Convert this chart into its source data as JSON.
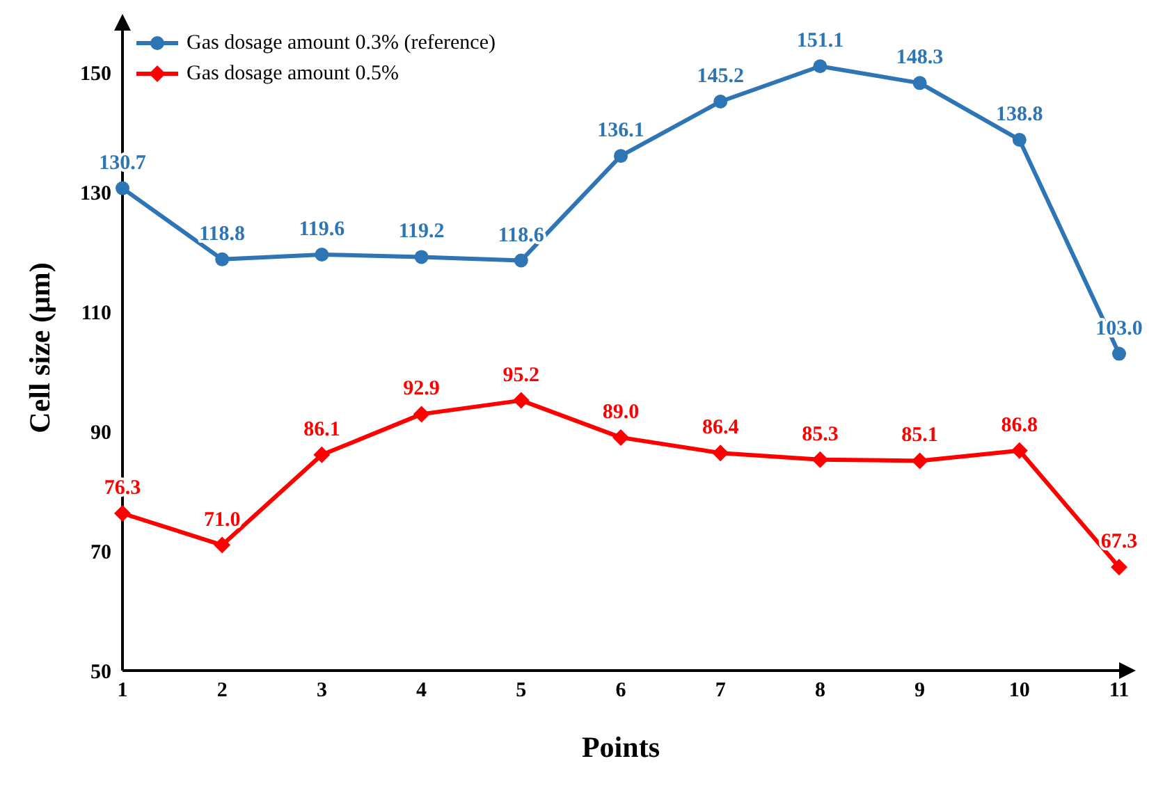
{
  "chart_data": {
    "type": "line",
    "xlabel": "Points",
    "ylabel": "Cell size (μm)",
    "categories": [
      "1",
      "2",
      "3",
      "4",
      "5",
      "6",
      "7",
      "8",
      "9",
      "10",
      "11"
    ],
    "ylim": [
      50,
      158
    ],
    "yticks": [
      50,
      70,
      90,
      110,
      130,
      150
    ],
    "grid": false,
    "legend": "top left",
    "line_style": "solid",
    "series": [
      {
        "name": "Gas dosage amount 0.3% (reference)",
        "color": "#2e75b6",
        "marker": "circle",
        "values": [
          130.7,
          118.8,
          119.6,
          119.2,
          118.6,
          136.1,
          145.2,
          151.1,
          148.3,
          138.8,
          103.0
        ],
        "value_labels": [
          "130.7",
          "118.8",
          "119.6",
          "119.2",
          "118.6",
          "136.1",
          "145.2",
          "151.1",
          "148.3",
          "138.8",
          "103.0"
        ]
      },
      {
        "name": "Gas dosage amount 0.5%",
        "color": "#ff0000",
        "marker": "diamond",
        "values": [
          76.3,
          71.0,
          86.1,
          92.9,
          95.2,
          89.0,
          86.4,
          85.3,
          85.1,
          86.8,
          67.3
        ],
        "value_labels": [
          "76.3",
          "71.0",
          "86.1",
          "92.9",
          "95.2",
          "89.0",
          "86.4",
          "85.3",
          "85.1",
          "86.8",
          "67.3"
        ]
      }
    ]
  }
}
